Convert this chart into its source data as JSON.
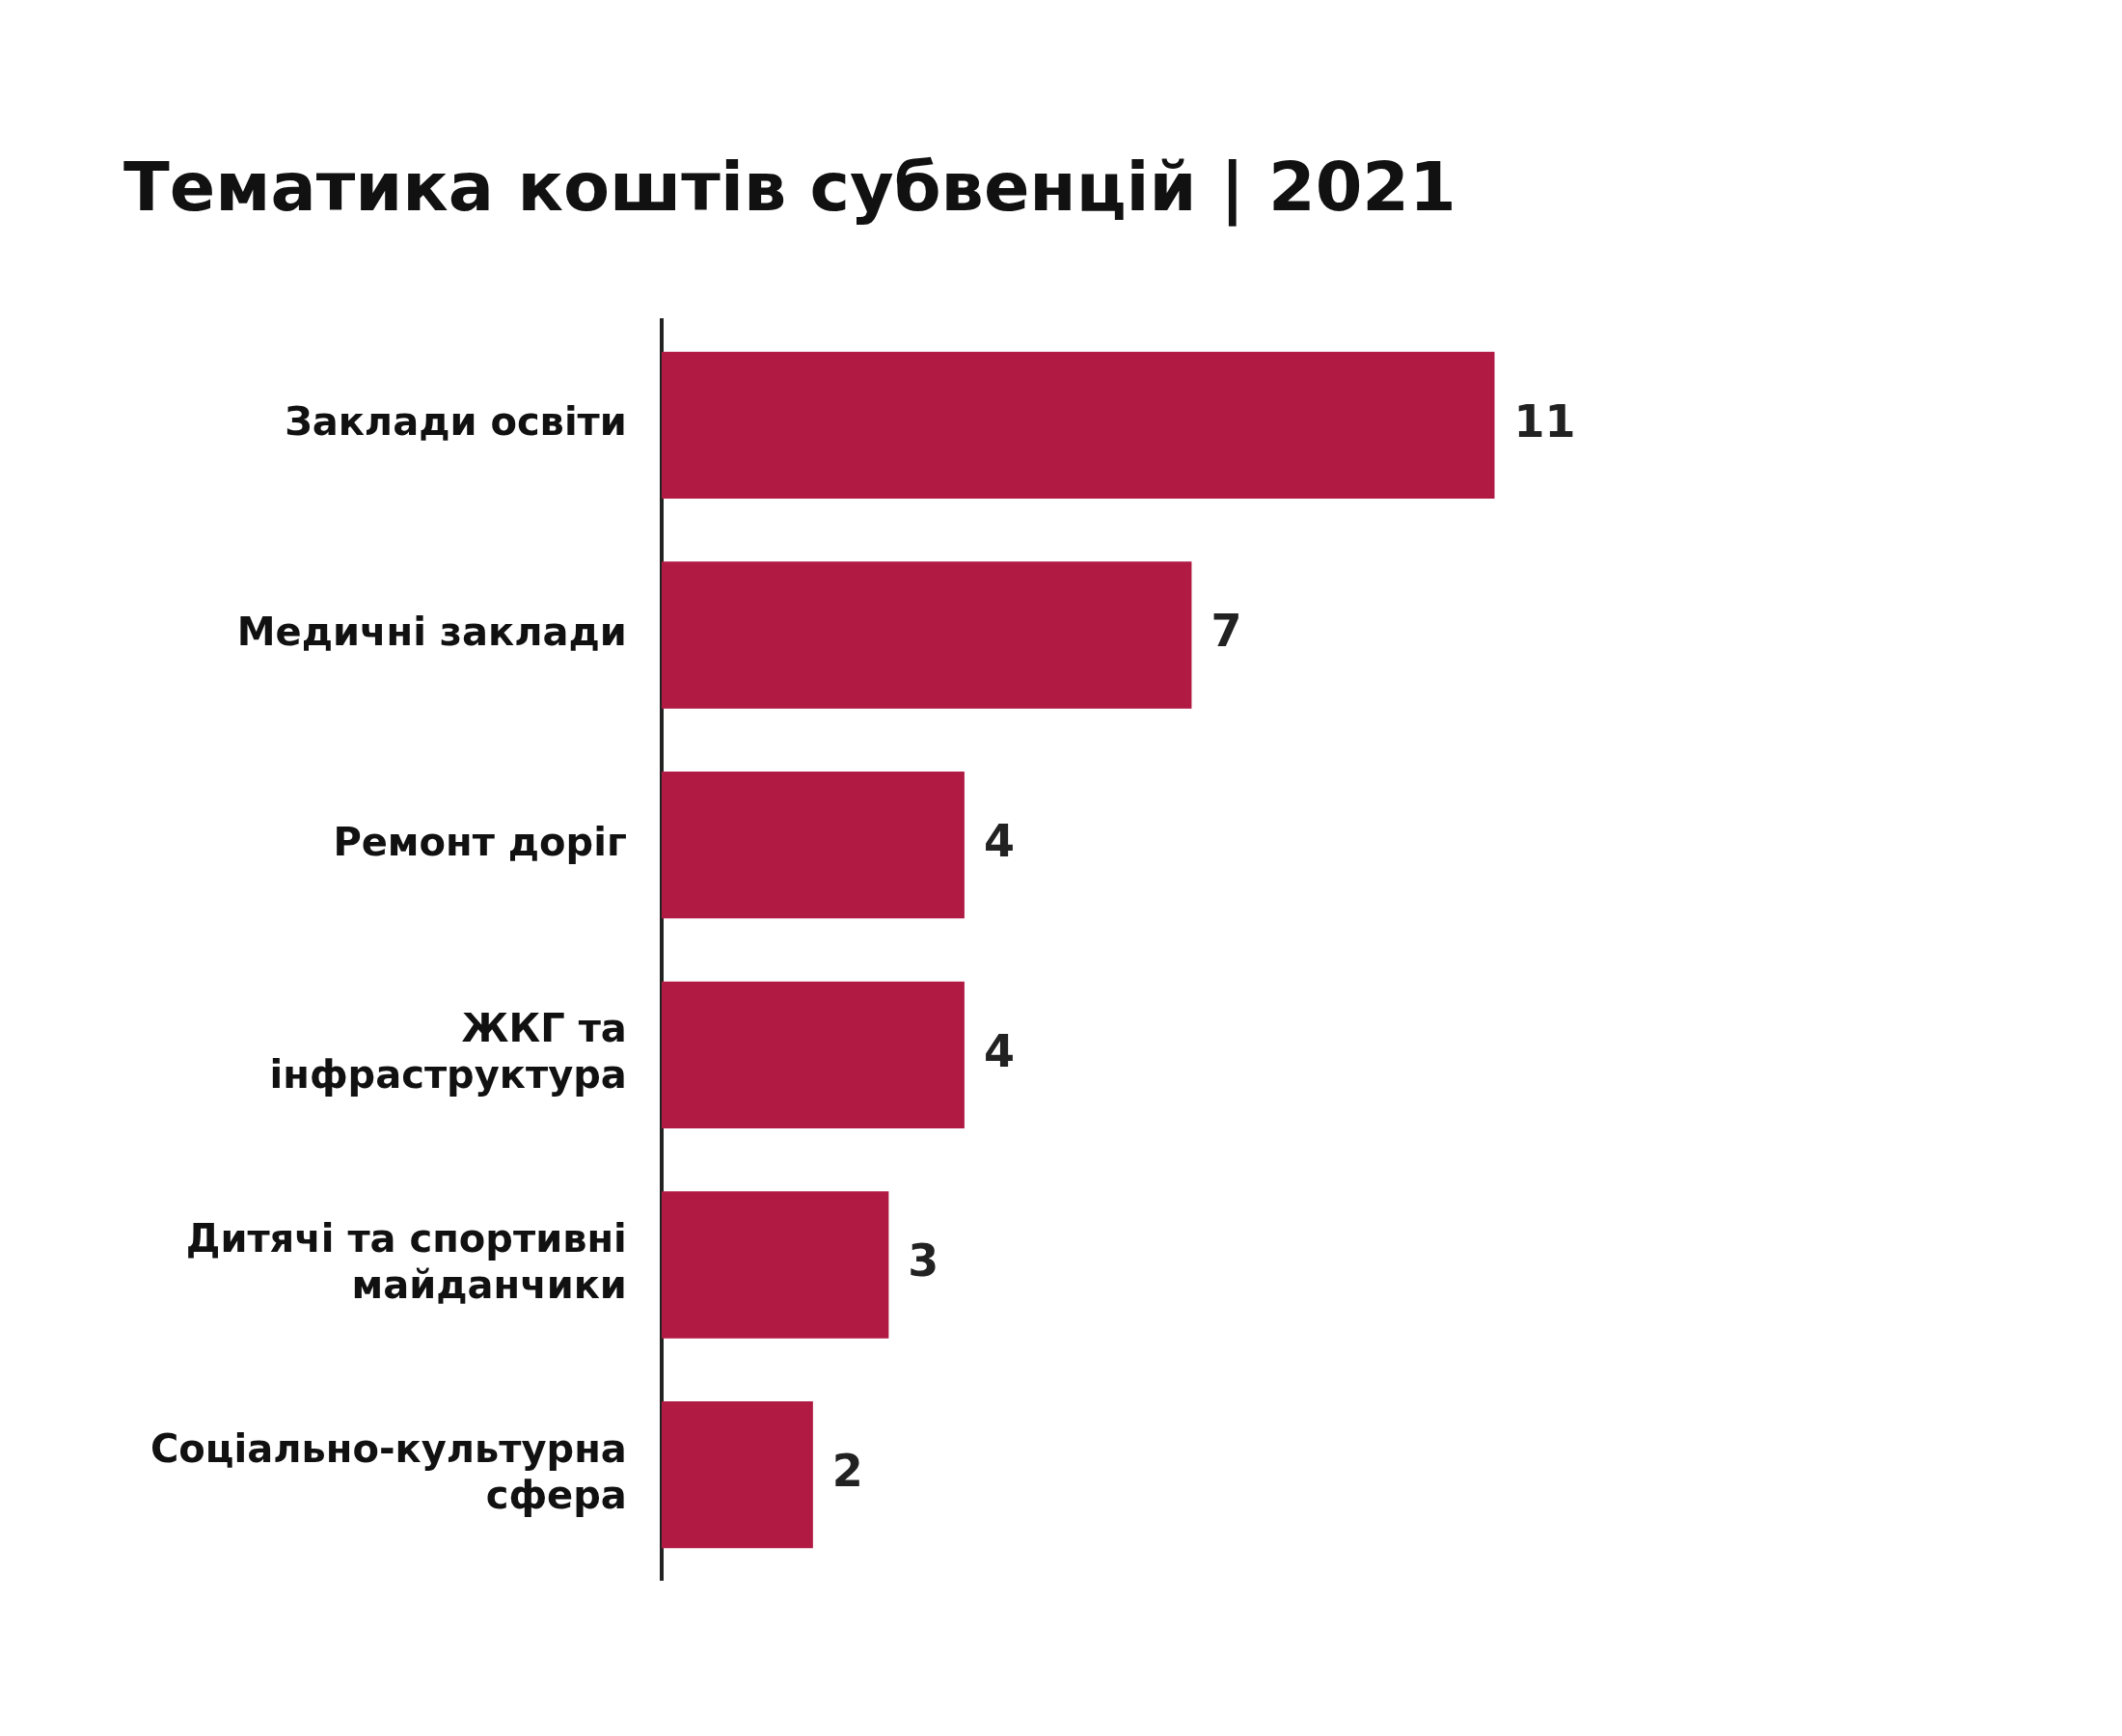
{
  "chart_data": {
    "type": "bar",
    "orientation": "horizontal",
    "title": "Тематика коштів субвенцій | 2021",
    "categories": [
      "Заклади освіти",
      "Медичні заклади",
      "Ремонт доріг",
      "ЖКГ та інфраструктура",
      "Дитячі та спортивні майданчики",
      "Соціально-культурна сфера"
    ],
    "values": [
      11,
      7,
      4,
      4,
      3,
      2
    ],
    "color": "#b01a43",
    "data_labels": true,
    "legend": false
  }
}
